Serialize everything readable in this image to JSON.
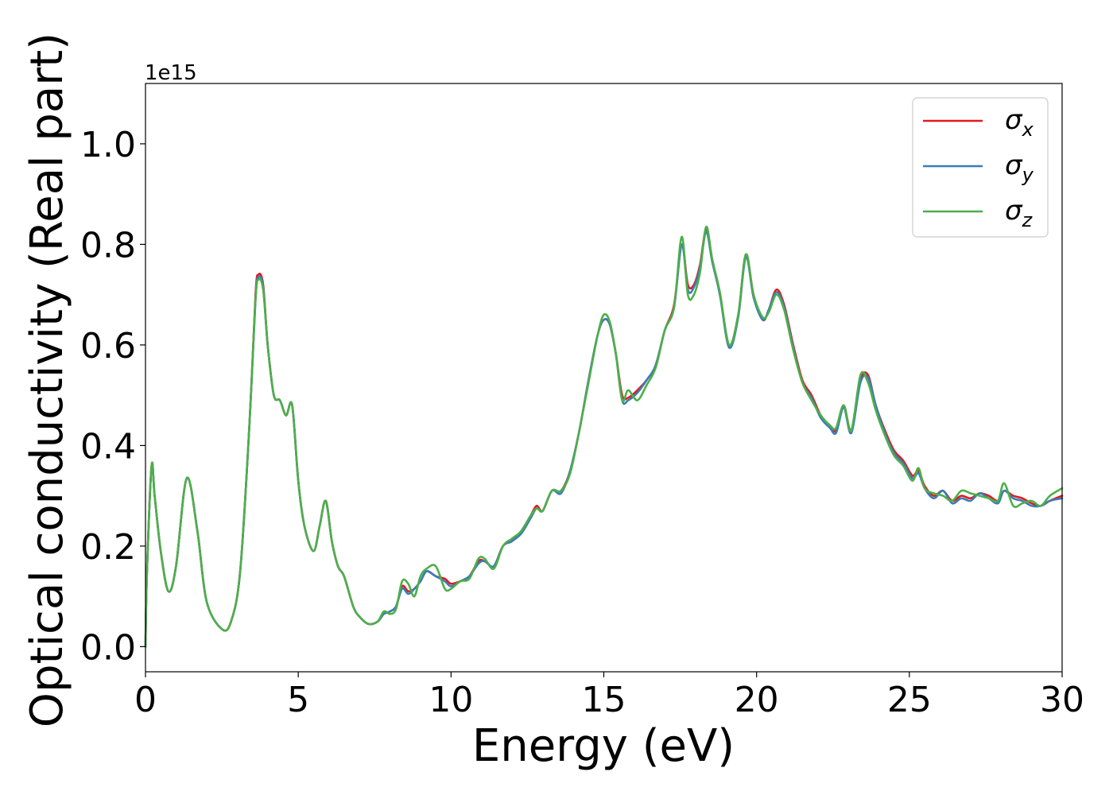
{
  "chart_data": {
    "type": "line",
    "title": "",
    "xlabel": "Energy (eV)",
    "ylabel": "Optical conductivity (Real part)",
    "y_offset_label": "1e15",
    "xlim": [
      0,
      30
    ],
    "ylim": [
      -0.05,
      1.12
    ],
    "xticks": [
      0,
      5,
      10,
      15,
      20,
      25,
      30
    ],
    "xtick_labels": [
      "0",
      "5",
      "10",
      "15",
      "20",
      "25",
      "30"
    ],
    "yticks": [
      0.0,
      0.2,
      0.4,
      0.6,
      0.8,
      1.0
    ],
    "ytick_labels": [
      "0.0",
      "0.2",
      "0.4",
      "0.6",
      "0.8",
      "1.0"
    ],
    "grid": false,
    "legend_position": "top-right",
    "series": [
      {
        "name": "σx",
        "symbol": "σ",
        "subscript": "x",
        "color": "#e41a1c",
        "x": [
          0,
          0.05,
          0.2,
          0.3,
          0.5,
          0.75,
          1.0,
          1.35,
          1.7,
          2.0,
          2.5,
          2.8,
          3.1,
          3.4,
          3.6,
          3.7,
          3.85,
          4.0,
          4.2,
          4.4,
          4.6,
          4.8,
          5.0,
          5.2,
          5.5,
          5.7,
          5.9,
          6.1,
          6.3,
          6.5,
          6.8,
          7.0,
          7.3,
          7.6,
          7.8,
          8.0,
          8.2,
          8.4,
          8.6,
          8.8,
          9.0,
          9.2,
          9.5,
          9.8,
          10.0,
          10.3,
          10.6,
          10.9,
          11.1,
          11.4,
          11.7,
          12.0,
          12.3,
          12.6,
          12.8,
          13.0,
          13.3,
          13.6,
          13.9,
          14.2,
          14.5,
          14.8,
          15.0,
          15.2,
          15.4,
          15.6,
          15.8,
          16.1,
          16.4,
          16.7,
          17.0,
          17.3,
          17.55,
          17.75,
          17.95,
          18.15,
          18.35,
          18.55,
          18.8,
          19.1,
          19.4,
          19.65,
          19.9,
          20.2,
          20.4,
          20.65,
          20.9,
          21.2,
          21.5,
          21.8,
          22.1,
          22.4,
          22.6,
          22.85,
          23.1,
          23.4,
          23.65,
          23.9,
          24.2,
          24.5,
          24.8,
          25.1,
          25.3,
          25.5,
          25.8,
          26.1,
          26.4,
          26.7,
          27.0,
          27.3,
          27.6,
          27.9,
          28.1,
          28.4,
          28.7,
          29.0,
          29.3,
          29.6,
          30.0
        ],
        "y": [
          0.0,
          0.15,
          0.36,
          0.3,
          0.19,
          0.11,
          0.16,
          0.335,
          0.23,
          0.09,
          0.035,
          0.05,
          0.15,
          0.44,
          0.7,
          0.74,
          0.72,
          0.6,
          0.5,
          0.49,
          0.46,
          0.48,
          0.33,
          0.24,
          0.19,
          0.24,
          0.29,
          0.21,
          0.16,
          0.14,
          0.08,
          0.06,
          0.045,
          0.05,
          0.065,
          0.07,
          0.08,
          0.12,
          0.11,
          0.115,
          0.13,
          0.15,
          0.14,
          0.135,
          0.125,
          0.13,
          0.14,
          0.17,
          0.17,
          0.16,
          0.2,
          0.21,
          0.23,
          0.26,
          0.28,
          0.27,
          0.31,
          0.31,
          0.35,
          0.43,
          0.53,
          0.62,
          0.65,
          0.64,
          0.58,
          0.5,
          0.495,
          0.51,
          0.53,
          0.56,
          0.63,
          0.68,
          0.8,
          0.72,
          0.72,
          0.76,
          0.83,
          0.77,
          0.7,
          0.6,
          0.66,
          0.78,
          0.7,
          0.65,
          0.67,
          0.71,
          0.68,
          0.6,
          0.53,
          0.5,
          0.46,
          0.44,
          0.43,
          0.48,
          0.43,
          0.53,
          0.54,
          0.48,
          0.43,
          0.39,
          0.37,
          0.34,
          0.35,
          0.32,
          0.3,
          0.31,
          0.29,
          0.3,
          0.295,
          0.305,
          0.3,
          0.29,
          0.31,
          0.3,
          0.295,
          0.285,
          0.28,
          0.29,
          0.3
        ]
      },
      {
        "name": "σy",
        "symbol": "σ",
        "subscript": "y",
        "color": "#377eb8",
        "x": [
          0,
          0.05,
          0.2,
          0.3,
          0.5,
          0.75,
          1.0,
          1.35,
          1.7,
          2.0,
          2.5,
          2.8,
          3.1,
          3.4,
          3.6,
          3.7,
          3.85,
          4.0,
          4.2,
          4.4,
          4.6,
          4.8,
          5.0,
          5.2,
          5.5,
          5.7,
          5.9,
          6.1,
          6.3,
          6.5,
          6.8,
          7.0,
          7.3,
          7.6,
          7.8,
          8.0,
          8.2,
          8.4,
          8.6,
          8.8,
          9.0,
          9.2,
          9.5,
          9.8,
          10.0,
          10.3,
          10.6,
          10.9,
          11.1,
          11.4,
          11.7,
          12.0,
          12.3,
          12.6,
          12.8,
          13.0,
          13.3,
          13.6,
          13.9,
          14.2,
          14.5,
          14.8,
          15.0,
          15.2,
          15.4,
          15.6,
          15.8,
          16.1,
          16.4,
          16.7,
          17.0,
          17.3,
          17.55,
          17.75,
          17.95,
          18.15,
          18.35,
          18.55,
          18.8,
          19.1,
          19.4,
          19.65,
          19.9,
          20.2,
          20.4,
          20.65,
          20.9,
          21.2,
          21.5,
          21.8,
          22.1,
          22.4,
          22.6,
          22.85,
          23.1,
          23.4,
          23.65,
          23.9,
          24.2,
          24.5,
          24.8,
          25.1,
          25.3,
          25.5,
          25.8,
          26.1,
          26.4,
          26.7,
          27.0,
          27.3,
          27.6,
          27.9,
          28.1,
          28.4,
          28.7,
          29.0,
          29.3,
          29.6,
          30.0
        ],
        "y": [
          0.0,
          0.15,
          0.36,
          0.3,
          0.19,
          0.11,
          0.16,
          0.335,
          0.23,
          0.09,
          0.035,
          0.05,
          0.15,
          0.44,
          0.69,
          0.735,
          0.715,
          0.6,
          0.5,
          0.49,
          0.46,
          0.48,
          0.33,
          0.24,
          0.19,
          0.24,
          0.29,
          0.21,
          0.16,
          0.14,
          0.08,
          0.06,
          0.045,
          0.05,
          0.065,
          0.07,
          0.08,
          0.115,
          0.105,
          0.115,
          0.13,
          0.15,
          0.14,
          0.13,
          0.12,
          0.13,
          0.14,
          0.165,
          0.17,
          0.16,
          0.2,
          0.21,
          0.225,
          0.255,
          0.275,
          0.27,
          0.31,
          0.305,
          0.35,
          0.43,
          0.53,
          0.62,
          0.65,
          0.64,
          0.58,
          0.49,
          0.49,
          0.505,
          0.53,
          0.56,
          0.63,
          0.675,
          0.8,
          0.71,
          0.715,
          0.755,
          0.825,
          0.765,
          0.7,
          0.595,
          0.655,
          0.775,
          0.695,
          0.65,
          0.67,
          0.705,
          0.675,
          0.595,
          0.525,
          0.495,
          0.455,
          0.435,
          0.425,
          0.475,
          0.425,
          0.525,
          0.535,
          0.48,
          0.425,
          0.385,
          0.365,
          0.335,
          0.345,
          0.315,
          0.295,
          0.31,
          0.285,
          0.295,
          0.29,
          0.305,
          0.295,
          0.285,
          0.31,
          0.295,
          0.29,
          0.28,
          0.28,
          0.29,
          0.295
        ]
      },
      {
        "name": "σz",
        "symbol": "σ",
        "subscript": "z",
        "color": "#4daf4a",
        "x": [
          0,
          0.05,
          0.2,
          0.3,
          0.5,
          0.75,
          1.0,
          1.35,
          1.7,
          2.0,
          2.5,
          2.8,
          3.1,
          3.4,
          3.6,
          3.7,
          3.85,
          4.0,
          4.2,
          4.4,
          4.6,
          4.8,
          5.0,
          5.2,
          5.5,
          5.7,
          5.9,
          6.1,
          6.3,
          6.5,
          6.8,
          7.0,
          7.3,
          7.6,
          7.8,
          8.0,
          8.2,
          8.4,
          8.6,
          8.8,
          9.0,
          9.2,
          9.5,
          9.8,
          10.0,
          10.3,
          10.6,
          10.9,
          11.1,
          11.4,
          11.7,
          12.0,
          12.3,
          12.6,
          12.8,
          13.0,
          13.3,
          13.6,
          13.9,
          14.2,
          14.5,
          14.8,
          15.0,
          15.2,
          15.4,
          15.6,
          15.8,
          16.1,
          16.4,
          16.7,
          17.0,
          17.3,
          17.55,
          17.75,
          17.95,
          18.15,
          18.35,
          18.55,
          18.8,
          19.1,
          19.4,
          19.65,
          19.9,
          20.2,
          20.4,
          20.65,
          20.9,
          21.2,
          21.5,
          21.8,
          22.1,
          22.4,
          22.6,
          22.85,
          23.1,
          23.4,
          23.65,
          23.9,
          24.2,
          24.5,
          24.8,
          25.1,
          25.3,
          25.5,
          25.8,
          26.1,
          26.4,
          26.7,
          27.0,
          27.3,
          27.6,
          27.9,
          28.1,
          28.4,
          28.7,
          29.0,
          29.3,
          29.6,
          30.0
        ],
        "y": [
          0.0,
          0.15,
          0.36,
          0.3,
          0.19,
          0.11,
          0.16,
          0.335,
          0.23,
          0.09,
          0.035,
          0.05,
          0.15,
          0.44,
          0.69,
          0.73,
          0.71,
          0.6,
          0.5,
          0.49,
          0.46,
          0.48,
          0.33,
          0.24,
          0.19,
          0.24,
          0.29,
          0.21,
          0.16,
          0.14,
          0.08,
          0.06,
          0.045,
          0.05,
          0.07,
          0.065,
          0.075,
          0.13,
          0.125,
          0.1,
          0.14,
          0.155,
          0.16,
          0.115,
          0.115,
          0.13,
          0.135,
          0.175,
          0.175,
          0.155,
          0.2,
          0.215,
          0.23,
          0.26,
          0.275,
          0.27,
          0.31,
          0.31,
          0.345,
          0.43,
          0.525,
          0.62,
          0.66,
          0.645,
          0.58,
          0.49,
          0.51,
          0.49,
          0.52,
          0.555,
          0.63,
          0.675,
          0.815,
          0.7,
          0.7,
          0.745,
          0.835,
          0.77,
          0.705,
          0.6,
          0.66,
          0.78,
          0.7,
          0.655,
          0.665,
          0.7,
          0.67,
          0.59,
          0.525,
          0.49,
          0.46,
          0.44,
          0.435,
          0.48,
          0.43,
          0.54,
          0.525,
          0.47,
          0.42,
          0.38,
          0.36,
          0.33,
          0.355,
          0.315,
          0.305,
          0.3,
          0.29,
          0.31,
          0.305,
          0.3,
          0.295,
          0.29,
          0.325,
          0.28,
          0.285,
          0.29,
          0.28,
          0.3,
          0.315
        ]
      }
    ]
  }
}
